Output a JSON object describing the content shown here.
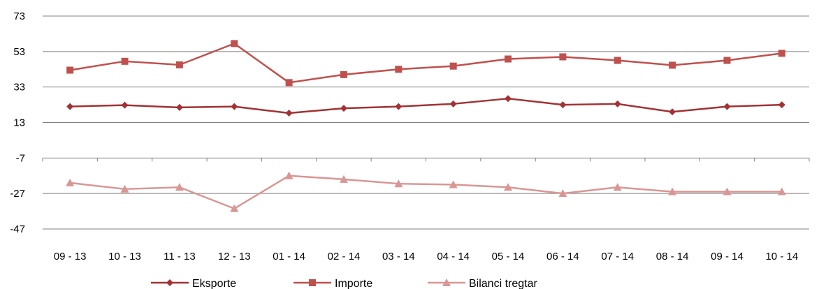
{
  "chart_data": {
    "type": "line",
    "title": "",
    "xlabel": "",
    "ylabel": "",
    "categories": [
      "09 - 13",
      "10 - 13",
      "11 - 13",
      "12 - 13",
      "01 - 14",
      "02 - 14",
      "03 - 14",
      "04 - 14",
      "05 - 14",
      "06 - 14",
      "07 - 14",
      "08 - 14",
      "09 - 14",
      "10 - 14"
    ],
    "ylim": [
      -47,
      73
    ],
    "yticks": [
      73,
      53,
      33,
      13,
      -7,
      -27,
      -47
    ],
    "x_axis_crosses_at": -7,
    "grid": true,
    "legend_position": "bottom",
    "series": [
      {
        "name": "Eksporte",
        "marker": "diamond",
        "color": "#A23234",
        "values": [
          22,
          22.8,
          21.5,
          22,
          18.3,
          21,
          22,
          23.5,
          26.5,
          23,
          23.5,
          19,
          22,
          23
        ]
      },
      {
        "name": "Importe",
        "marker": "square",
        "color": "#C0504D",
        "values": [
          42.5,
          47.5,
          45.5,
          57.5,
          35.5,
          40,
          43,
          44.8,
          48.8,
          50,
          48,
          45.3,
          48,
          52
        ]
      },
      {
        "name": "Bilanci tregtar",
        "marker": "triangle",
        "color": "#D99694",
        "values": [
          -21,
          -24.5,
          -23.5,
          -35.5,
          -17,
          -19,
          -21.5,
          -22,
          -23.5,
          -27,
          -23.5,
          -26,
          -26,
          -26
        ]
      }
    ]
  }
}
